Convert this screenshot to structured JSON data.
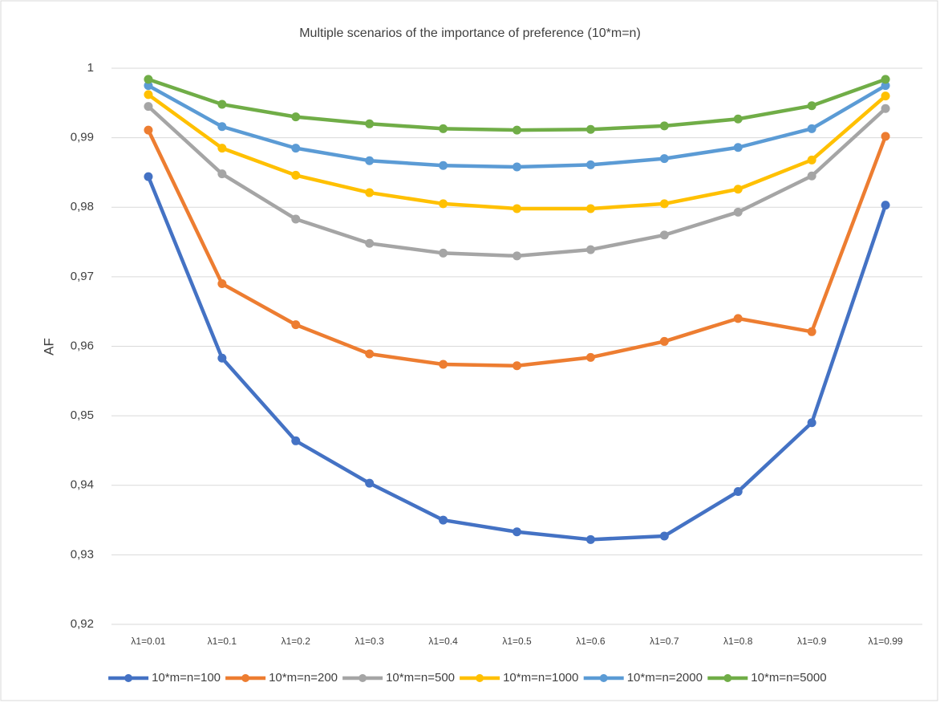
{
  "chart_data": {
    "type": "line",
    "title": "Multiple scenarios of the importance of preference (10*m=n)",
    "y_label": "AF",
    "categories": [
      "λ1=0.01",
      "λ1=0.1",
      "λ1=0.2",
      "λ1=0.3",
      "λ1=0.4",
      "λ1=0.5",
      "λ1=0.6",
      "λ1=0.7",
      "λ1=0.8",
      "λ1=0.9",
      "λ1=0.99"
    ],
    "series": [
      {
        "name": "10*m=n=100",
        "color": "#4472c4",
        "values": [
          0.9844,
          0.9583,
          0.9464,
          0.9403,
          0.935,
          0.9333,
          0.9322,
          0.9327,
          0.9391,
          0.949,
          0.9803
        ]
      },
      {
        "name": "10*m=n=200",
        "color": "#ed7d31",
        "values": [
          0.9911,
          0.969,
          0.9631,
          0.9589,
          0.9574,
          0.9572,
          0.9584,
          0.9607,
          0.964,
          0.9621,
          0.9902
        ]
      },
      {
        "name": "10*m=n=500",
        "color": "#a5a5a5",
        "values": [
          0.9945,
          0.9848,
          0.9783,
          0.9748,
          0.9734,
          0.973,
          0.9739,
          0.976,
          0.9793,
          0.9845,
          0.9942
        ]
      },
      {
        "name": "10*m=n=1000",
        "color": "#ffc000",
        "values": [
          0.9962,
          0.9885,
          0.9846,
          0.9821,
          0.9805,
          0.9798,
          0.9798,
          0.9805,
          0.9826,
          0.9868,
          0.996
        ]
      },
      {
        "name": "10*m=n=2000",
        "color": "#5b9bd5",
        "values": [
          0.9975,
          0.9916,
          0.9885,
          0.9867,
          0.986,
          0.9858,
          0.9861,
          0.987,
          0.9886,
          0.9913,
          0.9975
        ]
      },
      {
        "name": "10*m=n=5000",
        "color": "#70ad47",
        "values": [
          0.9984,
          0.9948,
          0.993,
          0.992,
          0.9913,
          0.9911,
          0.9912,
          0.9917,
          0.9927,
          0.9946,
          0.9984
        ]
      }
    ],
    "ylim": [
      0.92,
      1
    ],
    "yticks": [
      {
        "value": 0.92,
        "label": "0,92"
      },
      {
        "value": 0.93,
        "label": "0,93"
      },
      {
        "value": 0.94,
        "label": "0,94"
      },
      {
        "value": 0.95,
        "label": "0,95"
      },
      {
        "value": 0.96,
        "label": "0,96"
      },
      {
        "value": 0.97,
        "label": "0,97"
      },
      {
        "value": 0.98,
        "label": "0,98"
      },
      {
        "value": 0.99,
        "label": "0,99"
      },
      {
        "value": 1,
        "label": "1"
      }
    ],
    "grid": true,
    "legend": "bottom"
  }
}
